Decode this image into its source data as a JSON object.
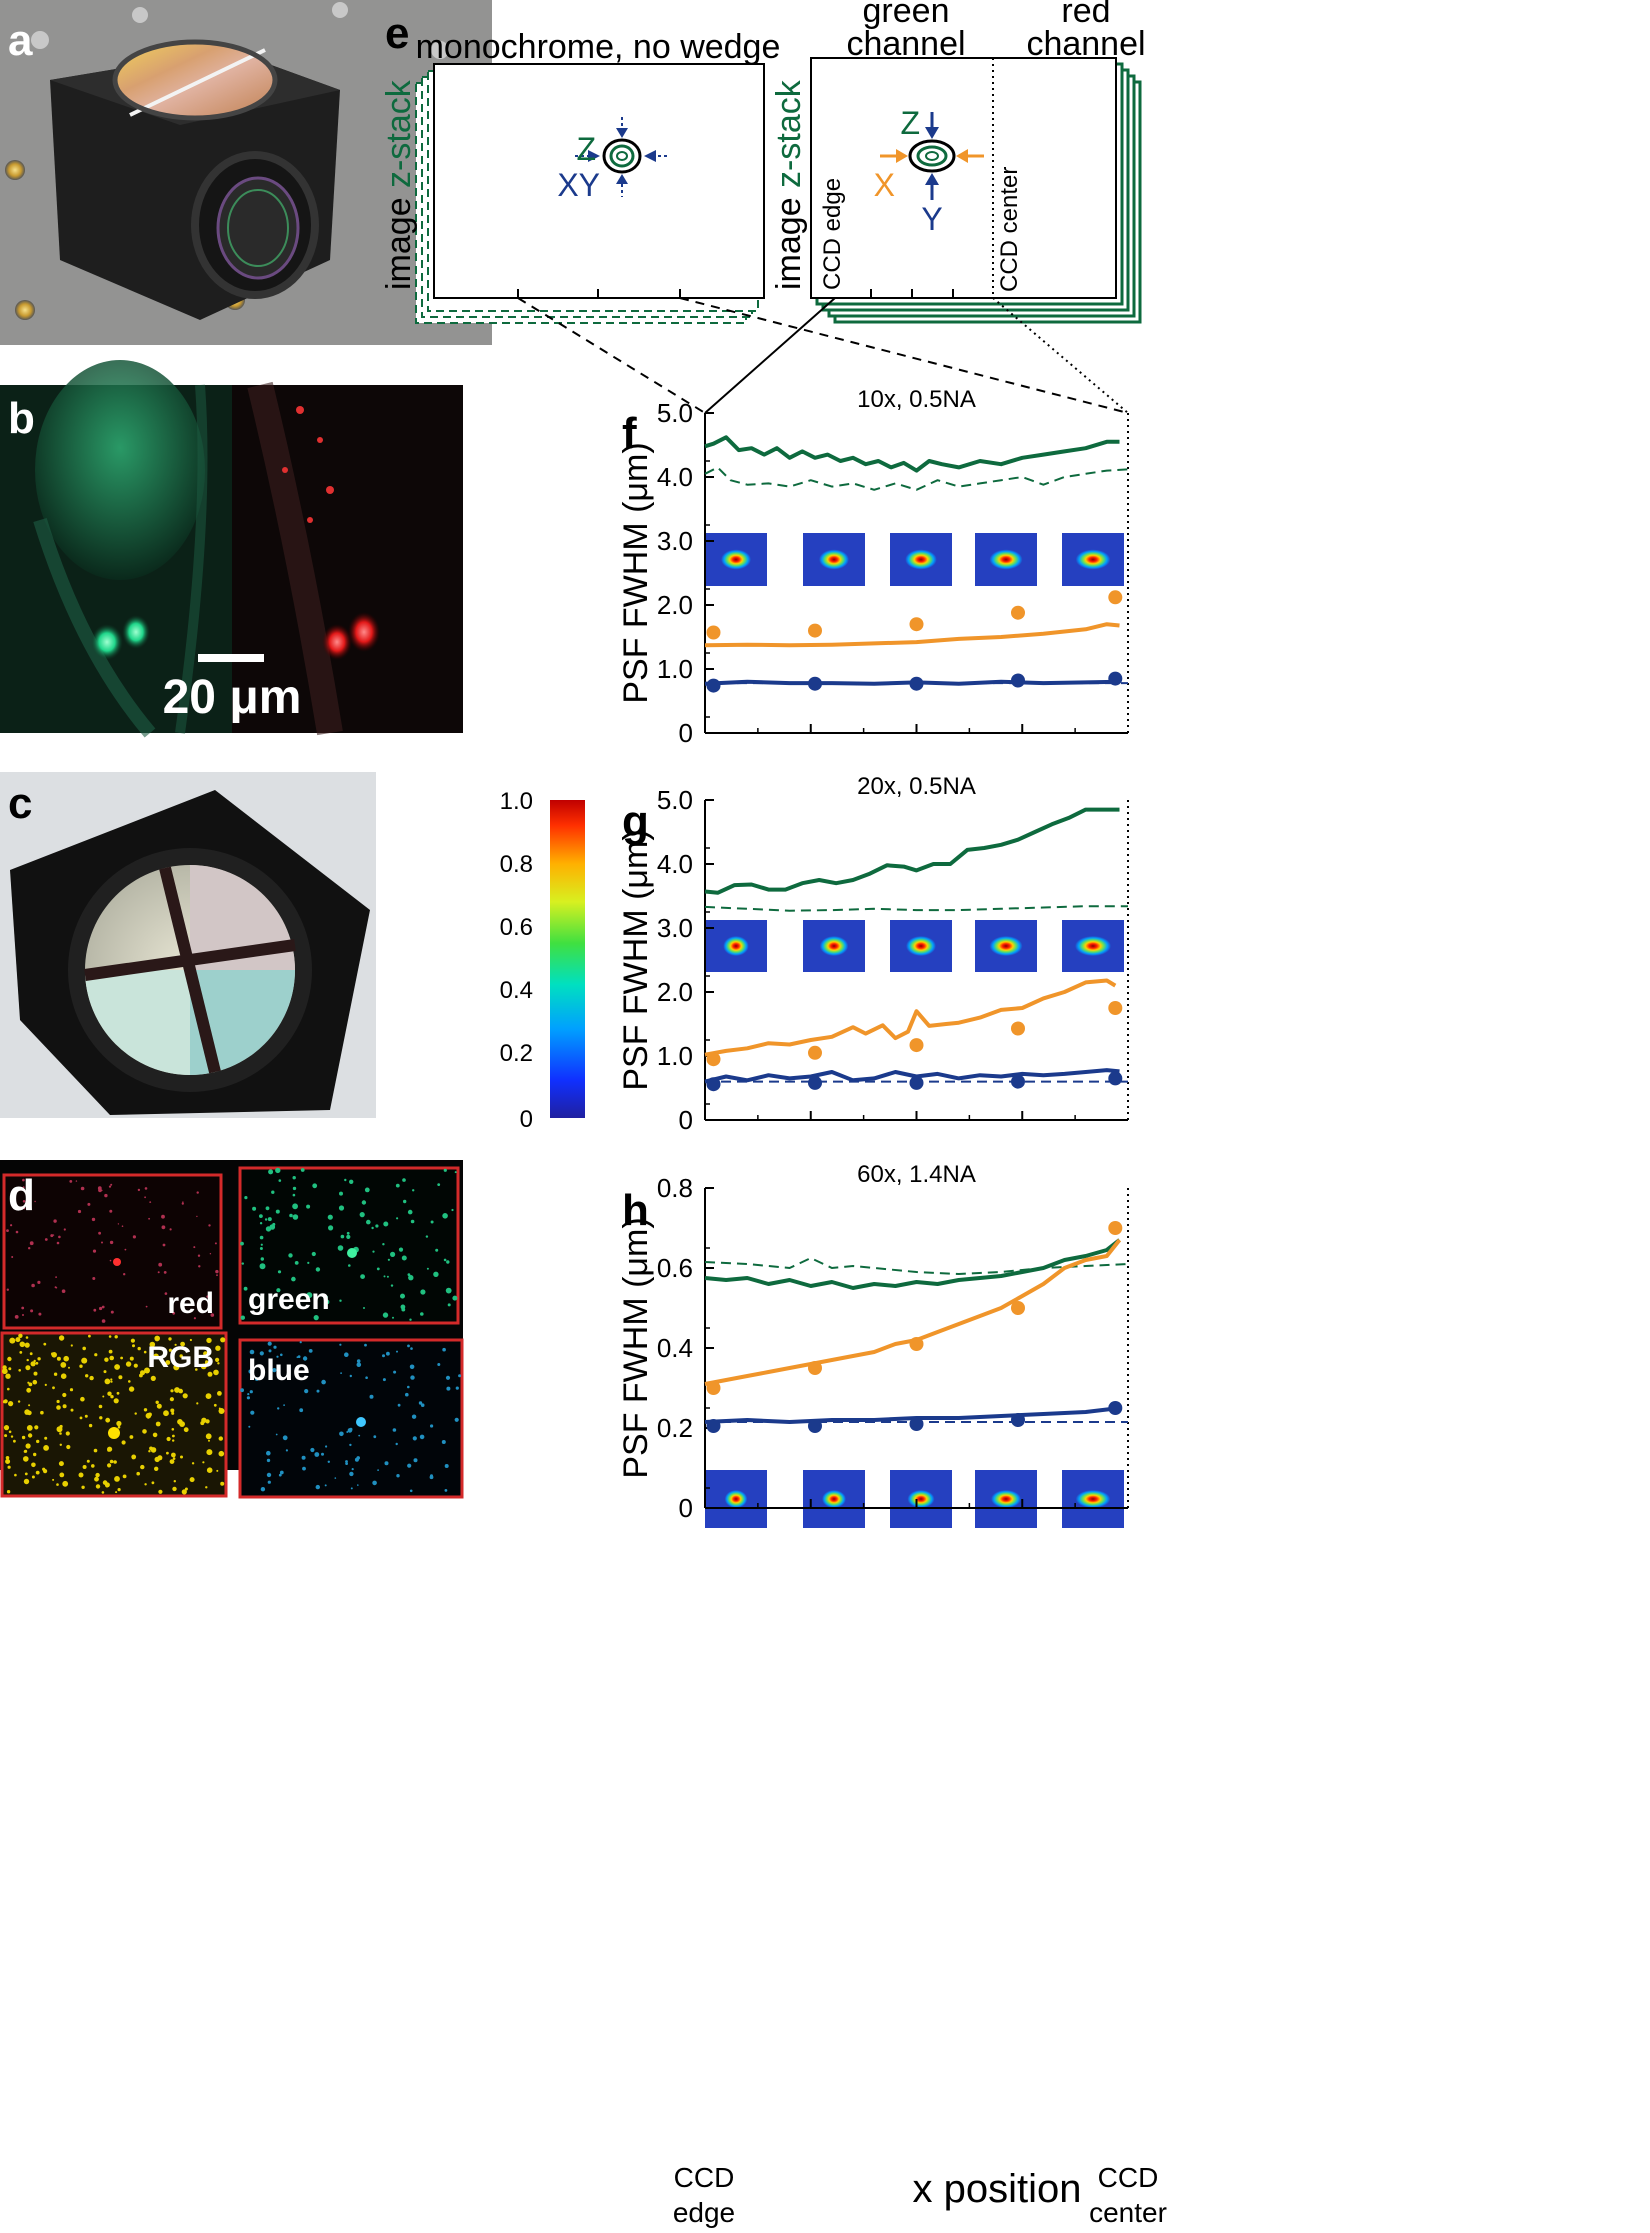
{
  "panel_labels": {
    "a": "a",
    "b": "b",
    "c": "c",
    "d": "d",
    "e": "e",
    "f": "f",
    "g": "g",
    "h": "h"
  },
  "panel_b": {
    "scale_bar": "20 μm"
  },
  "panel_d": {
    "red": "red",
    "green": "green",
    "rgb": "RGB",
    "blue": "blue"
  },
  "panel_e": {
    "mono_title": "monochrome, no wedge",
    "green_title_1": "green",
    "green_title_2": "channel",
    "red_title_1": "red",
    "red_title_2": "channel",
    "zstack_word1": "image ",
    "zstack_word2": "z-stack",
    "ccd_edge": "CCD edge",
    "ccd_center": "CCD center",
    "mono_z": "Z",
    "mono_xy": "XY",
    "wedge_z": "Z",
    "wedge_x": "X",
    "wedge_y": "Y"
  },
  "colorbar": {
    "ticks": [
      "1.0",
      "0.8",
      "0.6",
      "0.4",
      "0.2",
      "0"
    ]
  },
  "colors": {
    "green": "#0e6a3e",
    "orange": "#f0952a",
    "blue": "#1b3a8c",
    "frame": "#0e6a3e",
    "red_box": "#d42a2a"
  },
  "x_axis": {
    "label": "x position",
    "left_1": "CCD",
    "left_2": "edge",
    "right_1": "CCD",
    "right_2": "center"
  },
  "chart_data": [
    {
      "type": "line",
      "title": "10x, 0.5NA",
      "ylabel": "PSF FWHM (μm)",
      "xlabel": "x position",
      "ylim": [
        0,
        5
      ],
      "yticks": [
        "0",
        "1.0",
        "2.0",
        "3.0",
        "4.0",
        "5.0"
      ],
      "xlim": [
        0,
        1
      ],
      "series": [
        {
          "name": "Z wedge",
          "color": "#0e6a3e",
          "style": "solid",
          "x": [
            0,
            0.02,
            0.05,
            0.08,
            0.11,
            0.14,
            0.17,
            0.2,
            0.23,
            0.26,
            0.29,
            0.32,
            0.35,
            0.38,
            0.41,
            0.44,
            0.47,
            0.5,
            0.53,
            0.56,
            0.6,
            0.65,
            0.7,
            0.75,
            0.8,
            0.85,
            0.9,
            0.95,
            0.98
          ],
          "values": [
            4.48,
            4.52,
            4.62,
            4.42,
            4.45,
            4.35,
            4.45,
            4.3,
            4.4,
            4.3,
            4.35,
            4.25,
            4.3,
            4.2,
            4.25,
            4.15,
            4.22,
            4.1,
            4.25,
            4.2,
            4.15,
            4.25,
            4.2,
            4.3,
            4.35,
            4.4,
            4.45,
            4.55,
            4.55
          ]
        },
        {
          "name": "Z no wedge",
          "color": "#0e6a3e",
          "style": "dashed",
          "x": [
            0,
            0.03,
            0.06,
            0.1,
            0.15,
            0.2,
            0.25,
            0.3,
            0.35,
            0.4,
            0.45,
            0.5,
            0.55,
            0.6,
            0.65,
            0.7,
            0.75,
            0.8,
            0.85,
            0.9,
            0.95,
            1.0
          ],
          "values": [
            4.05,
            4.15,
            3.95,
            3.88,
            3.9,
            3.85,
            3.95,
            3.85,
            3.9,
            3.8,
            3.9,
            3.8,
            3.95,
            3.85,
            3.9,
            3.95,
            4.0,
            3.88,
            4.0,
            4.05,
            4.1,
            4.12
          ]
        },
        {
          "name": "X wedge",
          "color": "#f0952a",
          "style": "solid",
          "x": [
            0,
            0.1,
            0.2,
            0.3,
            0.4,
            0.5,
            0.6,
            0.7,
            0.8,
            0.9,
            0.95,
            0.98
          ],
          "values": [
            1.37,
            1.38,
            1.37,
            1.38,
            1.4,
            1.42,
            1.47,
            1.5,
            1.55,
            1.62,
            1.7,
            1.68
          ]
        },
        {
          "name": "Y wedge",
          "color": "#1b3a8c",
          "style": "solid",
          "x": [
            0,
            0.1,
            0.2,
            0.3,
            0.4,
            0.5,
            0.6,
            0.7,
            0.8,
            0.9,
            0.98
          ],
          "values": [
            0.77,
            0.8,
            0.78,
            0.78,
            0.77,
            0.79,
            0.77,
            0.8,
            0.78,
            0.79,
            0.8
          ]
        },
        {
          "name": "XY no wedge",
          "color": "#1b3a8c",
          "style": "dashed",
          "x": [
            0,
            1.0
          ],
          "values": [
            0.78,
            0.78
          ]
        }
      ],
      "points": [
        {
          "name": "X bead",
          "color": "#f0952a",
          "x": [
            0.02,
            0.26,
            0.5,
            0.74,
            0.97
          ],
          "values": [
            1.57,
            1.6,
            1.7,
            1.88,
            2.12
          ]
        },
        {
          "name": "Y bead",
          "color": "#1b3a8c",
          "x": [
            0.02,
            0.26,
            0.5,
            0.74,
            0.97
          ],
          "values": [
            0.74,
            0.77,
            0.77,
            0.82,
            0.85
          ]
        }
      ]
    },
    {
      "type": "line",
      "title": "20x, 0.5NA",
      "ylabel": "PSF FWHM (μm)",
      "xlabel": "x position",
      "ylim": [
        0,
        5
      ],
      "yticks": [
        "0",
        "1.0",
        "2.0",
        "3.0",
        "4.0",
        "5.0"
      ],
      "xlim": [
        0,
        1
      ],
      "series": [
        {
          "name": "Z wedge",
          "color": "#0e6a3e",
          "style": "solid",
          "x": [
            0,
            0.03,
            0.07,
            0.11,
            0.15,
            0.19,
            0.23,
            0.27,
            0.31,
            0.35,
            0.39,
            0.43,
            0.47,
            0.5,
            0.54,
            0.58,
            0.62,
            0.66,
            0.7,
            0.74,
            0.78,
            0.82,
            0.86,
            0.9,
            0.94,
            0.98
          ],
          "values": [
            3.57,
            3.55,
            3.67,
            3.68,
            3.6,
            3.6,
            3.7,
            3.75,
            3.7,
            3.75,
            3.85,
            3.98,
            3.96,
            3.9,
            4.0,
            4.0,
            4.22,
            4.25,
            4.3,
            4.38,
            4.5,
            4.62,
            4.72,
            4.85,
            4.85,
            4.85
          ]
        },
        {
          "name": "Z no wedge",
          "color": "#0e6a3e",
          "style": "dashed",
          "x": [
            0,
            0.1,
            0.2,
            0.3,
            0.4,
            0.5,
            0.6,
            0.7,
            0.8,
            0.9,
            1.0
          ],
          "values": [
            3.33,
            3.3,
            3.27,
            3.28,
            3.3,
            3.28,
            3.28,
            3.3,
            3.32,
            3.34,
            3.34
          ]
        },
        {
          "name": "X wedge",
          "color": "#f0952a",
          "style": "solid",
          "x": [
            0,
            0.05,
            0.1,
            0.15,
            0.2,
            0.25,
            0.3,
            0.35,
            0.38,
            0.42,
            0.45,
            0.48,
            0.5,
            0.53,
            0.57,
            0.6,
            0.65,
            0.7,
            0.75,
            0.8,
            0.85,
            0.9,
            0.95,
            0.97
          ],
          "values": [
            1.02,
            1.08,
            1.12,
            1.2,
            1.18,
            1.25,
            1.3,
            1.45,
            1.35,
            1.48,
            1.28,
            1.38,
            1.7,
            1.47,
            1.5,
            1.52,
            1.6,
            1.72,
            1.75,
            1.9,
            2.0,
            2.15,
            2.18,
            2.1
          ]
        },
        {
          "name": "Y wedge",
          "color": "#1b3a8c",
          "style": "solid",
          "x": [
            0,
            0.05,
            0.1,
            0.15,
            0.2,
            0.25,
            0.3,
            0.35,
            0.4,
            0.45,
            0.5,
            0.55,
            0.6,
            0.65,
            0.7,
            0.75,
            0.8,
            0.85,
            0.9,
            0.95,
            0.98
          ],
          "values": [
            0.6,
            0.68,
            0.62,
            0.7,
            0.65,
            0.68,
            0.75,
            0.62,
            0.65,
            0.75,
            0.68,
            0.72,
            0.65,
            0.7,
            0.68,
            0.72,
            0.7,
            0.72,
            0.75,
            0.78,
            0.76
          ]
        },
        {
          "name": "XY no wedge",
          "color": "#1b3a8c",
          "style": "dashed",
          "x": [
            0,
            1.0
          ],
          "values": [
            0.6,
            0.6
          ]
        }
      ],
      "points": [
        {
          "name": "X bead",
          "color": "#f0952a",
          "x": [
            0.02,
            0.26,
            0.5,
            0.74,
            0.97
          ],
          "values": [
            0.95,
            1.05,
            1.17,
            1.43,
            1.75
          ]
        },
        {
          "name": "Y bead",
          "color": "#1b3a8c",
          "x": [
            0.02,
            0.26,
            0.5,
            0.74,
            0.97
          ],
          "values": [
            0.56,
            0.58,
            0.58,
            0.6,
            0.65
          ]
        }
      ]
    },
    {
      "type": "line",
      "title": "60x, 1.4NA",
      "ylabel": "PSF FWHM (μm)",
      "xlabel": "x position",
      "ylim": [
        0,
        0.8
      ],
      "yticks": [
        "0",
        "0.2",
        "0.4",
        "0.6",
        "0.8"
      ],
      "xlim": [
        0,
        1
      ],
      "series": [
        {
          "name": "Z wedge",
          "color": "#0e6a3e",
          "style": "solid",
          "x": [
            0,
            0.05,
            0.1,
            0.15,
            0.2,
            0.25,
            0.3,
            0.35,
            0.4,
            0.45,
            0.5,
            0.55,
            0.6,
            0.65,
            0.7,
            0.75,
            0.8,
            0.85,
            0.9,
            0.95,
            0.98
          ],
          "values": [
            0.575,
            0.57,
            0.575,
            0.56,
            0.57,
            0.555,
            0.565,
            0.55,
            0.56,
            0.555,
            0.565,
            0.56,
            0.57,
            0.575,
            0.58,
            0.59,
            0.6,
            0.62,
            0.63,
            0.645,
            0.67
          ]
        },
        {
          "name": "Z no wedge",
          "color": "#0e6a3e",
          "style": "dashed",
          "x": [
            0,
            0.1,
            0.2,
            0.25,
            0.3,
            0.35,
            0.4,
            0.5,
            0.6,
            0.7,
            0.8,
            0.9,
            1.0
          ],
          "values": [
            0.615,
            0.61,
            0.6,
            0.625,
            0.6,
            0.605,
            0.6,
            0.59,
            0.585,
            0.59,
            0.6,
            0.605,
            0.61
          ]
        },
        {
          "name": "X wedge",
          "color": "#f0952a",
          "style": "solid",
          "x": [
            0,
            0.05,
            0.1,
            0.15,
            0.2,
            0.25,
            0.3,
            0.35,
            0.4,
            0.45,
            0.5,
            0.55,
            0.6,
            0.65,
            0.7,
            0.75,
            0.8,
            0.85,
            0.9,
            0.95,
            0.98
          ],
          "values": [
            0.31,
            0.32,
            0.33,
            0.34,
            0.35,
            0.36,
            0.37,
            0.38,
            0.39,
            0.41,
            0.42,
            0.44,
            0.46,
            0.48,
            0.5,
            0.53,
            0.56,
            0.6,
            0.62,
            0.63,
            0.67
          ]
        },
        {
          "name": "Y wedge",
          "color": "#1b3a8c",
          "style": "solid",
          "x": [
            0,
            0.1,
            0.2,
            0.3,
            0.4,
            0.5,
            0.6,
            0.7,
            0.8,
            0.9,
            0.98
          ],
          "values": [
            0.215,
            0.22,
            0.215,
            0.22,
            0.22,
            0.225,
            0.225,
            0.23,
            0.235,
            0.24,
            0.25
          ]
        },
        {
          "name": "XY no wedge",
          "color": "#1b3a8c",
          "style": "dashed",
          "x": [
            0,
            1.0
          ],
          "values": [
            0.215,
            0.215
          ]
        }
      ],
      "points": [
        {
          "name": "X bead",
          "color": "#f0952a",
          "x": [
            0.02,
            0.26,
            0.5,
            0.74,
            0.97
          ],
          "values": [
            0.3,
            0.35,
            0.41,
            0.5,
            0.7
          ]
        },
        {
          "name": "Y bead",
          "color": "#1b3a8c",
          "x": [
            0.02,
            0.26,
            0.5,
            0.74,
            0.97
          ],
          "values": [
            0.205,
            0.205,
            0.21,
            0.22,
            0.25
          ]
        }
      ]
    }
  ]
}
